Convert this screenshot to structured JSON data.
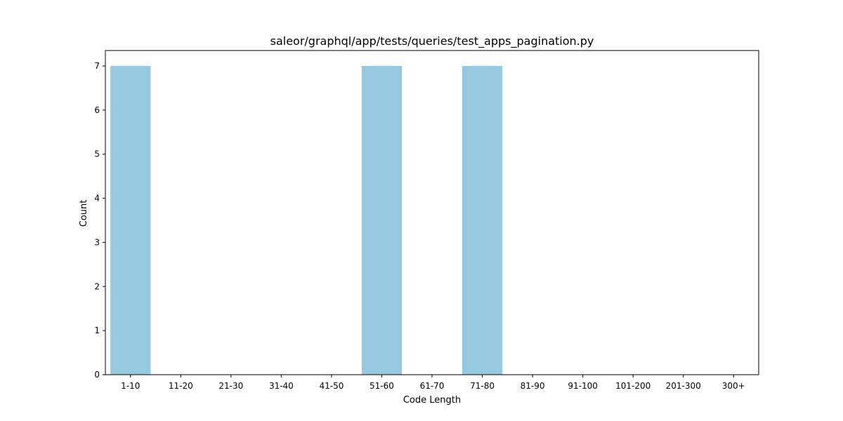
{
  "chart_data": {
    "type": "bar",
    "title": "saleor/graphql/app/tests/queries/test_apps_pagination.py",
    "xlabel": "Code Length",
    "ylabel": "Count",
    "categories": [
      "1-10",
      "11-20",
      "21-30",
      "31-40",
      "41-50",
      "51-60",
      "61-70",
      "71-80",
      "81-90",
      "91-100",
      "101-200",
      "201-300",
      "300+"
    ],
    "values": [
      7,
      0,
      0,
      0,
      0,
      7,
      0,
      7,
      0,
      0,
      0,
      0,
      0
    ],
    "yticks": [
      "0",
      "1",
      "2",
      "3",
      "4",
      "5",
      "6",
      "7"
    ],
    "ylim": [
      0,
      7.35
    ],
    "bar_color": "#96c9df",
    "grid": false,
    "legend": "none"
  }
}
